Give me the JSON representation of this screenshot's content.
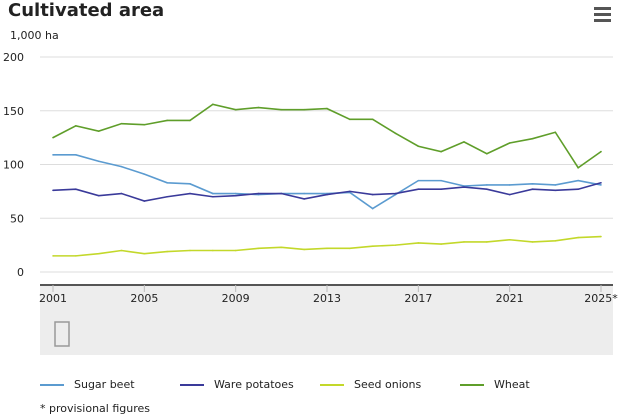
{
  "title": "Cultivated area",
  "menu_icon": "hamburger-menu-icon",
  "chart_data": {
    "type": "line",
    "title": "Cultivated area",
    "ylabel": "1,000 ha",
    "ylim": [
      0,
      200
    ],
    "yticks": [
      "0",
      "50",
      "100",
      "150",
      "200"
    ],
    "xticks": [
      "2001",
      "2005",
      "2009",
      "2013",
      "2017",
      "2021",
      "2025*"
    ],
    "x": [
      2001,
      2002,
      2003,
      2004,
      2005,
      2006,
      2007,
      2008,
      2009,
      2010,
      2011,
      2012,
      2013,
      2014,
      2015,
      2016,
      2017,
      2018,
      2019,
      2020,
      2021,
      2022,
      2023,
      2024,
      2025
    ],
    "grid": true,
    "legend_position": "bottom",
    "series": [
      {
        "name": "Sugar beet",
        "color": "#5b9bd0",
        "values": [
          109,
          109,
          103,
          98,
          91,
          83,
          82,
          73,
          73,
          72,
          73,
          73,
          73,
          74,
          59,
          72,
          85,
          85,
          80,
          81,
          81,
          82,
          81,
          85,
          81
        ]
      },
      {
        "name": "Ware potatoes",
        "color": "#3a3a9a",
        "values": [
          76,
          77,
          71,
          73,
          66,
          70,
          73,
          70,
          71,
          73,
          73,
          68,
          72,
          75,
          72,
          73,
          77,
          77,
          79,
          77,
          72,
          77,
          76,
          77,
          83
        ]
      },
      {
        "name": "Seed onions",
        "color": "#c3d82a",
        "values": [
          15,
          15,
          17,
          20,
          17,
          19,
          20,
          20,
          20,
          22,
          23,
          21,
          22,
          22,
          24,
          25,
          27,
          26,
          28,
          28,
          30,
          28,
          29,
          32,
          33
        ]
      },
      {
        "name": "Wheat",
        "color": "#5f9e2a",
        "values": [
          125,
          136,
          131,
          138,
          137,
          141,
          141,
          156,
          151,
          153,
          151,
          151,
          152,
          142,
          142,
          129,
          117,
          112,
          121,
          110,
          120,
          124,
          130,
          97,
          112
        ]
      }
    ],
    "footnote": "* provisional figures"
  }
}
